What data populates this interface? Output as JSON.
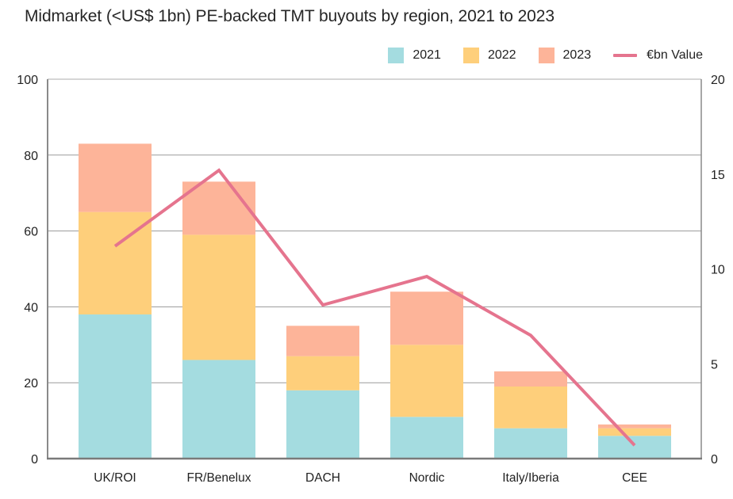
{
  "chart_data": {
    "type": "bar",
    "subtype": "stacked-bar-with-line",
    "title": "Midmarket (<US$ 1bn) PE-backed TMT buyouts by region, 2021 to 2023",
    "categories": [
      "UK/ROI",
      "FR/Benelux",
      "DACH",
      "Nordic",
      "Italy/Iberia",
      "CEE"
    ],
    "series": [
      {
        "name": "2021",
        "axis": "left",
        "type": "bar",
        "color": "#A4DCE0",
        "values": [
          38,
          26,
          18,
          11,
          8,
          6
        ]
      },
      {
        "name": "2022",
        "axis": "left",
        "type": "bar",
        "color": "#FECF7B",
        "values": [
          27,
          33,
          9,
          19,
          11,
          2
        ]
      },
      {
        "name": "2023",
        "axis": "left",
        "type": "bar",
        "color": "#FDB499",
        "values": [
          18,
          14,
          8,
          14,
          4,
          1
        ]
      },
      {
        "name": "€bn Value",
        "axis": "right",
        "type": "line",
        "color": "#E5748E",
        "values": [
          11.2,
          15.2,
          8.1,
          9.6,
          6.5,
          0.7
        ]
      }
    ],
    "y_left": {
      "label": "",
      "range": [
        0,
        100
      ],
      "ticks": [
        0,
        20,
        40,
        60,
        80,
        100
      ]
    },
    "y_right": {
      "label": "",
      "range": [
        0,
        20
      ],
      "ticks": [
        0,
        5,
        10,
        15,
        20
      ]
    },
    "xlabel": "",
    "grid": true,
    "legend": "top-right"
  },
  "legend": {
    "items": [
      {
        "label": "2021",
        "color": "#A4DCE0",
        "kind": "box"
      },
      {
        "label": "2022",
        "color": "#FECF7B",
        "kind": "box"
      },
      {
        "label": "2023",
        "color": "#FDB499",
        "kind": "box"
      },
      {
        "label": "€bn Value",
        "color": "#E5748E",
        "kind": "line"
      }
    ]
  }
}
